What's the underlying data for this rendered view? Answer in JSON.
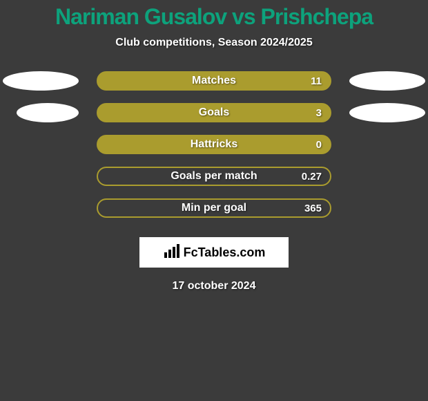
{
  "title": {
    "text": "Nariman Gusalov vs Prishchepa",
    "color": "#0da27c",
    "fontsize": 32
  },
  "subtitle": {
    "text": "Club competitions, Season 2024/2025",
    "fontsize": 16
  },
  "rows": [
    {
      "label": "Matches",
      "value": "11",
      "show_ellipses": true,
      "left_ellipse_narrow": false,
      "bar_color": "#aa9c2e",
      "border_color": "#aa9c2e"
    },
    {
      "label": "Goals",
      "value": "3",
      "show_ellipses": true,
      "left_ellipse_narrow": true,
      "bar_color": "#aa9c2e",
      "border_color": "#aa9c2e"
    },
    {
      "label": "Hattricks",
      "value": "0",
      "show_ellipses": false,
      "left_ellipse_narrow": false,
      "bar_color": "#aa9c2e",
      "border_color": "#aa9c2e"
    },
    {
      "label": "Goals per match",
      "value": "0.27",
      "show_ellipses": false,
      "left_ellipse_narrow": false,
      "bar_color": "transparent",
      "border_color": "#aa9c2e"
    },
    {
      "label": "Min per goal",
      "value": "365",
      "show_ellipses": false,
      "left_ellipse_narrow": false,
      "bar_color": "transparent",
      "border_color": "#aa9c2e"
    }
  ],
  "bar_style": {
    "label_fontsize": 16,
    "value_fontsize": 15,
    "text_color": "#ffffff",
    "border_width": 2,
    "ellipse_color": "#ffffff",
    "ellipse_narrow_width": 90
  },
  "logo": {
    "text": "FcTables.com",
    "icon_name": "bar-chart-icon"
  },
  "date": {
    "text": "17 october 2024",
    "fontsize": 16
  },
  "background_color": "#3b3b3b"
}
